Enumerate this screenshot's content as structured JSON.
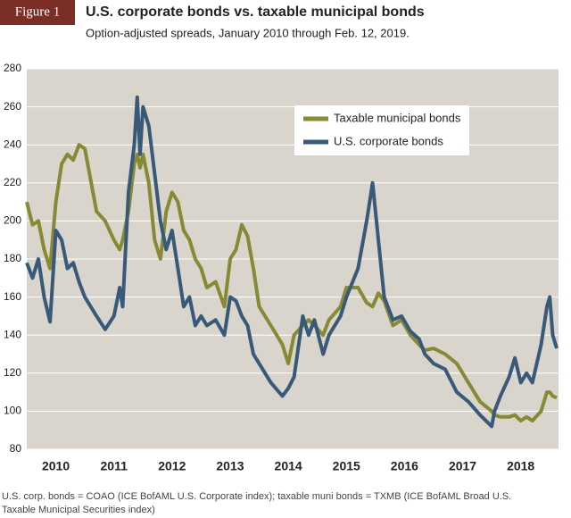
{
  "chart_data": {
    "type": "line",
    "badge": "Figure 1",
    "title": "U.S. corporate bonds vs. taxable municipal bonds",
    "subtitle": "Option-adjusted spreads, January 2010 through Feb. 12, 2019.",
    "footnote": [
      "U.S. corp. bonds = COAO (ICE BofAML U.S. Corporate index); taxable muni bonds = TXMB (ICE BofAML Broad U.S.",
      "Taxable Municipal Securities index)"
    ],
    "x": [
      2010,
      2010.1,
      2010.2,
      2010.3,
      2010.4,
      2010.5,
      2010.6,
      2010.7,
      2010.8,
      2010.9,
      2011,
      2011.2,
      2011.35,
      2011.5,
      2011.6,
      2011.65,
      2011.75,
      2011.85,
      2011.9,
      2011.95,
      2012,
      2012.1,
      2012.2,
      2012.3,
      2012.4,
      2012.5,
      2012.6,
      2012.7,
      2012.8,
      2012.9,
      2013,
      2013.1,
      2013.25,
      2013.4,
      2013.5,
      2013.6,
      2013.7,
      2013.8,
      2013.9,
      2014,
      2014.2,
      2014.4,
      2014.5,
      2014.6,
      2014.75,
      2014.85,
      2014.95,
      2015.1,
      2015.2,
      2015.4,
      2015.5,
      2015.7,
      2015.85,
      2015.95,
      2016.05,
      2016.15,
      2016.3,
      2016.45,
      2016.6,
      2016.75,
      2016.85,
      2017,
      2017.2,
      2017.4,
      2017.6,
      2017.8,
      2018,
      2018.05,
      2018.15,
      2018.3,
      2018.4,
      2018.5,
      2018.6,
      2018.7,
      2018.85,
      2018.95,
      2019,
      2019.05,
      2019.12
    ],
    "series": [
      {
        "name": "Taxable municipal bonds",
        "color": "#878a35",
        "values": [
          210,
          198,
          200,
          185,
          175,
          210,
          230,
          235,
          232,
          240,
          238,
          205,
          200,
          190,
          185,
          190,
          205,
          230,
          235,
          228,
          235,
          220,
          190,
          180,
          205,
          215,
          210,
          195,
          190,
          180,
          175,
          165,
          168,
          155,
          180,
          185,
          198,
          192,
          175,
          155,
          145,
          135,
          125,
          140,
          145,
          148,
          145,
          140,
          148,
          155,
          165,
          165,
          157,
          155,
          162,
          158,
          145,
          148,
          140,
          135,
          132,
          133,
          130,
          125,
          115,
          105,
          100,
          98,
          97,
          97,
          98,
          95,
          97,
          95,
          100,
          110,
          110,
          108,
          107
        ]
      },
      {
        "name": "U.S. corporate bonds",
        "color": "#385a78",
        "values": [
          178,
          170,
          180,
          160,
          147,
          195,
          190,
          175,
          178,
          168,
          160,
          150,
          143,
          150,
          165,
          155,
          215,
          240,
          265,
          235,
          260,
          250,
          225,
          200,
          185,
          195,
          175,
          155,
          160,
          145,
          150,
          145,
          148,
          140,
          160,
          158,
          150,
          145,
          130,
          125,
          115,
          108,
          112,
          118,
          150,
          140,
          148,
          130,
          140,
          150,
          160,
          175,
          200,
          220,
          190,
          160,
          148,
          150,
          142,
          138,
          130,
          125,
          122,
          110,
          105,
          98,
          92,
          100,
          108,
          118,
          128,
          115,
          120,
          115,
          135,
          155,
          160,
          140,
          133
        ]
      }
    ],
    "xlim": [
      2010,
      2019.15
    ],
    "xticks": [
      {
        "value": 2010.5,
        "label": "2010"
      },
      {
        "value": 2011.5,
        "label": "2011"
      },
      {
        "value": 2012.5,
        "label": "2012"
      },
      {
        "value": 2013.5,
        "label": "2013"
      },
      {
        "value": 2014.5,
        "label": "2014"
      },
      {
        "value": 2015.5,
        "label": "2015"
      },
      {
        "value": 2016.5,
        "label": "2016"
      },
      {
        "value": 2017.5,
        "label": "2017"
      },
      {
        "value": 2018.5,
        "label": "2018"
      }
    ],
    "ylim": [
      80,
      280
    ],
    "yticks": [
      80,
      100,
      120,
      140,
      160,
      180,
      200,
      220,
      240,
      260,
      280
    ],
    "grid": true,
    "legend": "upper right"
  }
}
